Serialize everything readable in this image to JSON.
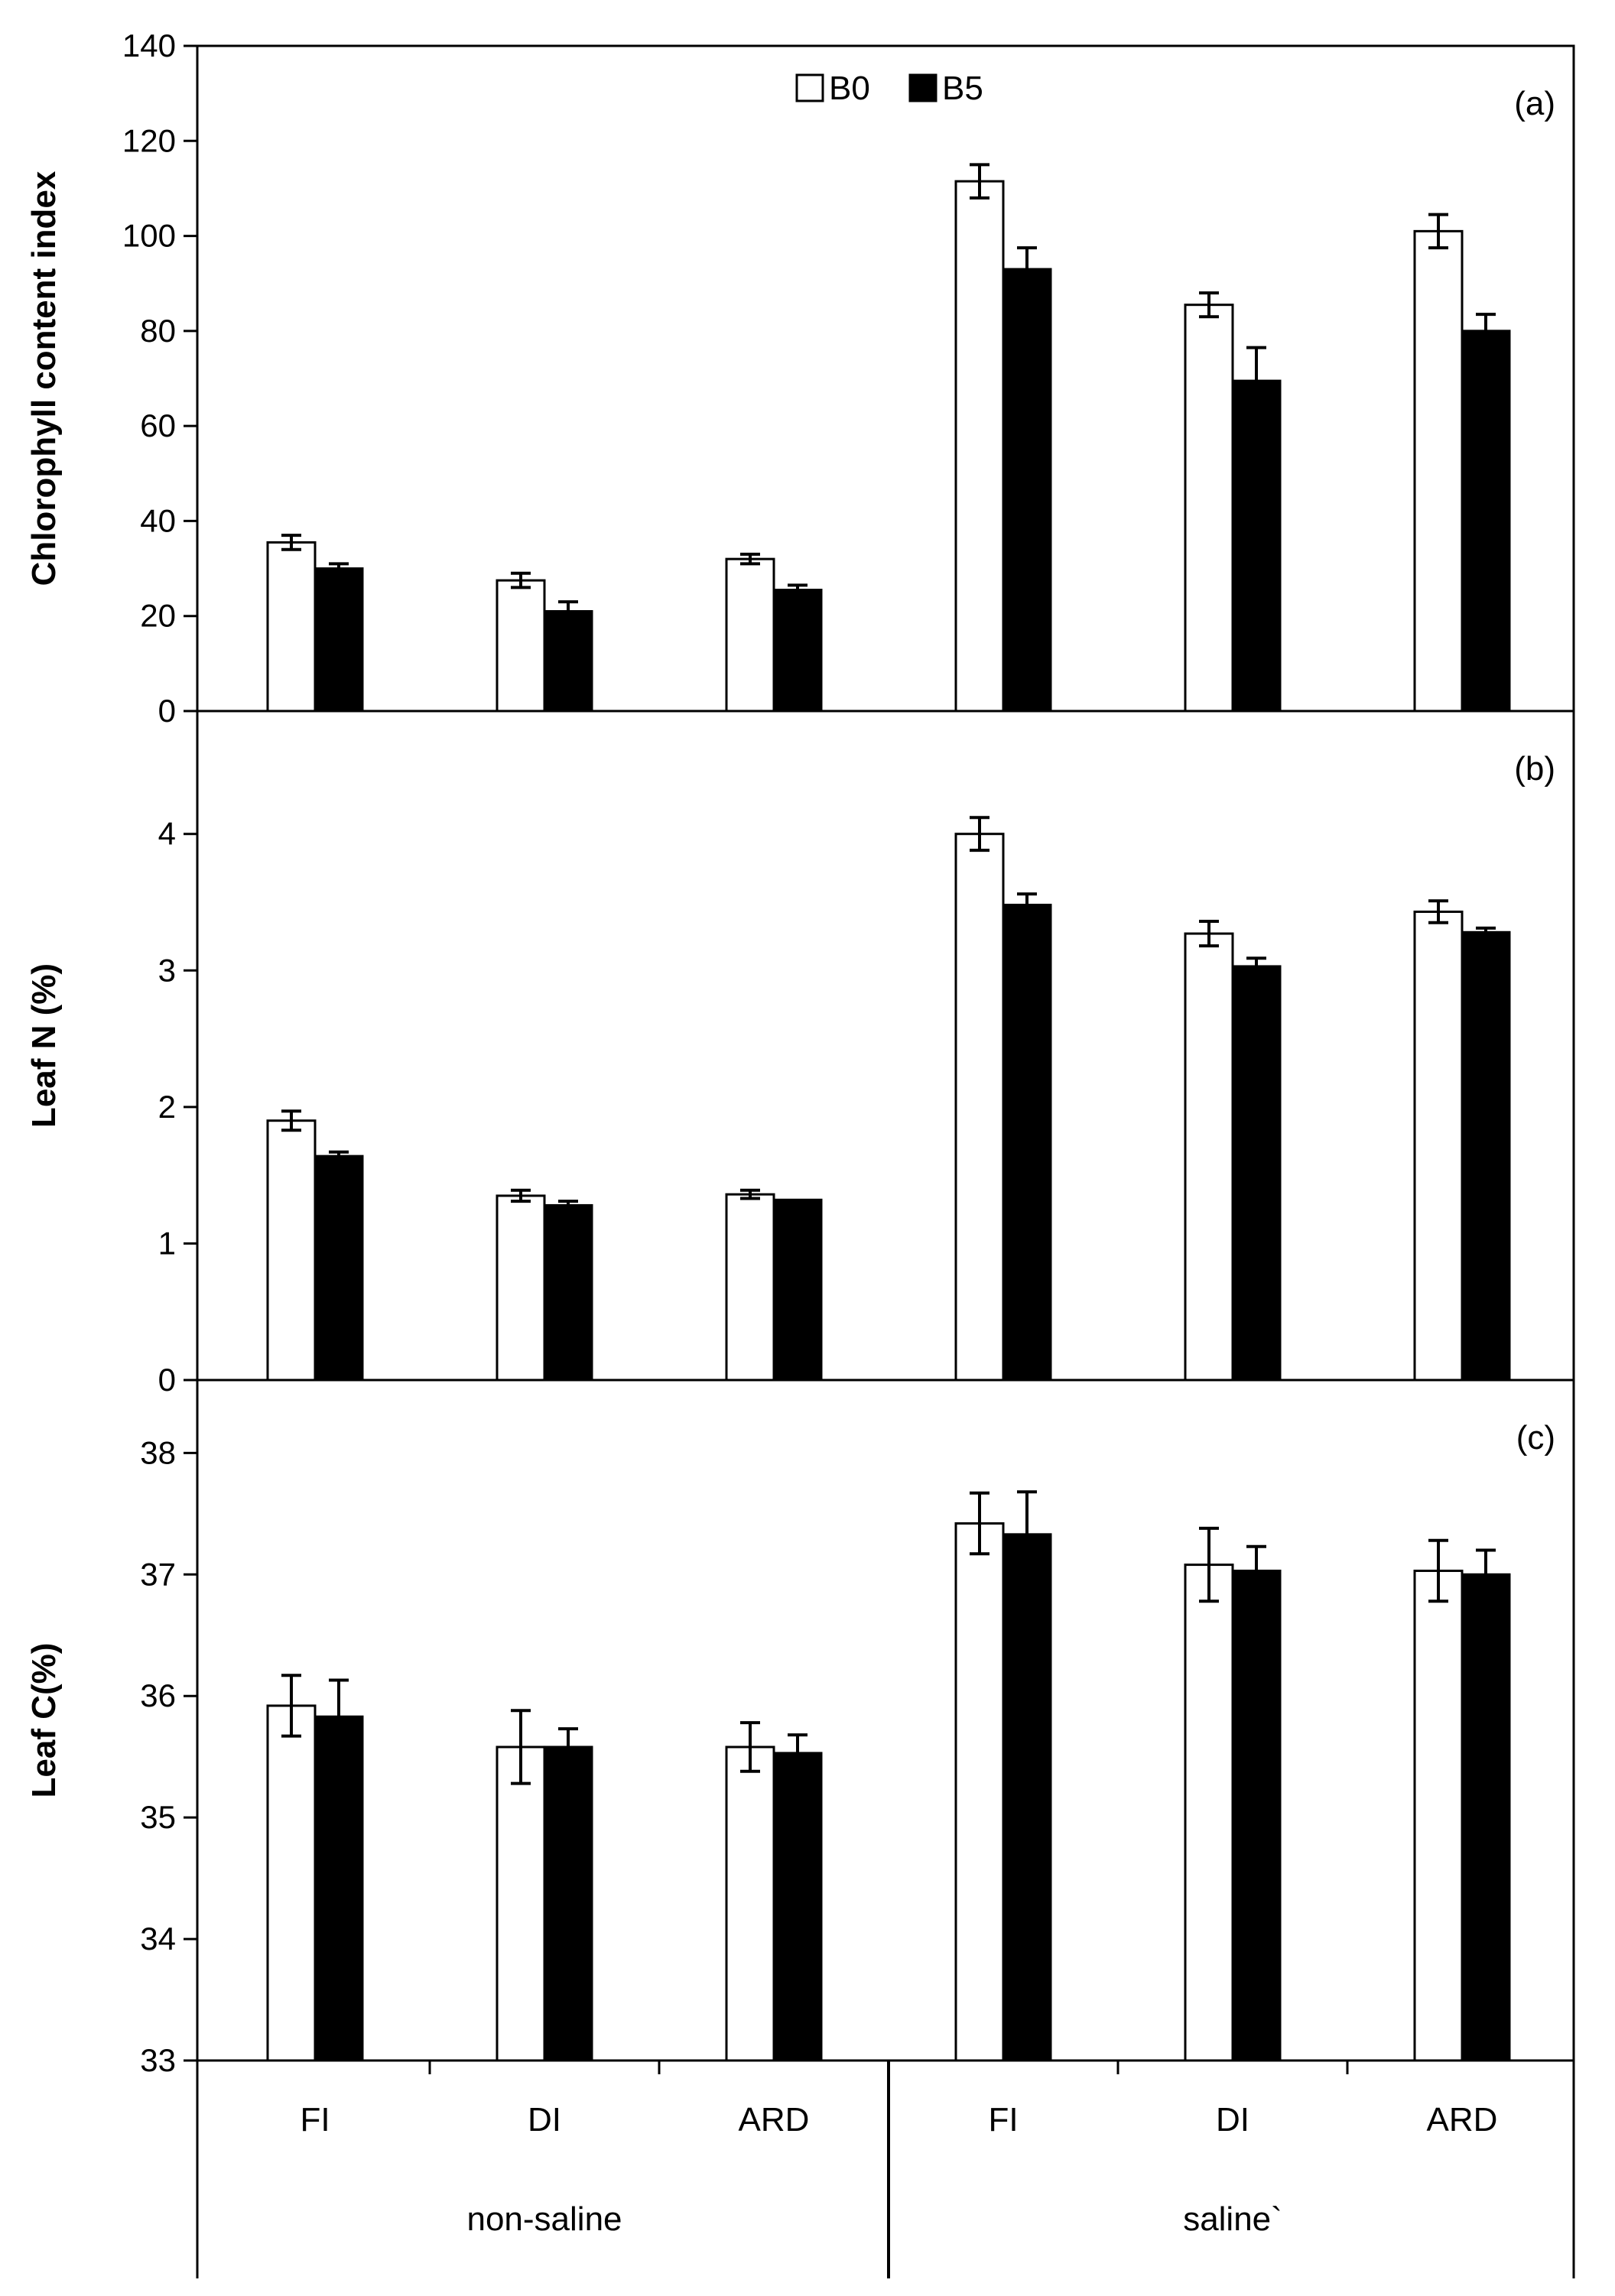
{
  "legend": [
    {
      "name": "B0",
      "color": "#ffffff"
    },
    {
      "name": "B5",
      "color": "#000000"
    }
  ],
  "categories": [
    "FI",
    "DI",
    "ARD",
    "FI",
    "DI",
    "ARD"
  ],
  "groups": [
    {
      "label": "non-saline",
      "categories": [
        0,
        1,
        2
      ]
    },
    {
      "label": "saline`",
      "categories": [
        3,
        4,
        5
      ]
    }
  ],
  "chart_data": [
    {
      "type": "bar",
      "panel_label": "(a)",
      "ylabel": "Chlorophyll content index",
      "ylim": [
        0,
        140
      ],
      "yticks": [
        0,
        20,
        40,
        60,
        80,
        100,
        120,
        140
      ],
      "ytick_labels": [
        "0",
        "20",
        "40",
        "60",
        "80",
        "100",
        "120",
        "140"
      ],
      "legend_position": "top-center",
      "series": [
        {
          "name": "B0",
          "values": [
            35.5,
            27.5,
            32.0,
            111.5,
            85.5,
            101.0
          ],
          "errors": [
            1.5,
            1.5,
            1.0,
            3.5,
            2.5,
            3.5
          ]
        },
        {
          "name": "B5",
          "values": [
            30.0,
            21.0,
            25.5,
            93.0,
            69.5,
            80.0
          ],
          "errors": [
            1.0,
            2.0,
            1.0,
            4.5,
            7.0,
            3.5
          ]
        }
      ]
    },
    {
      "type": "bar",
      "panel_label": "(b)",
      "ylabel": "Leaf N (%)",
      "ylim": [
        0,
        4.9
      ],
      "yticks": [
        0,
        1,
        2,
        3,
        4
      ],
      "ytick_labels": [
        "0",
        "1",
        "2",
        "3",
        "4"
      ],
      "series": [
        {
          "name": "B0",
          "values": [
            1.9,
            1.35,
            1.36,
            4.0,
            3.27,
            3.43
          ],
          "errors": [
            0.07,
            0.04,
            0.03,
            0.12,
            0.09,
            0.08
          ]
        },
        {
          "name": "B5",
          "values": [
            1.64,
            1.28,
            1.32,
            3.48,
            3.03,
            3.28
          ],
          "errors": [
            0.03,
            0.03,
            0.0,
            0.08,
            0.06,
            0.03
          ]
        }
      ]
    },
    {
      "type": "bar",
      "panel_label": "(c)",
      "ylabel": "Leaf C(%)",
      "ylim": [
        33,
        38.6
      ],
      "yticks": [
        33,
        34,
        35,
        36,
        37,
        38
      ],
      "ytick_labels": [
        "33",
        "34",
        "35",
        "36",
        "37",
        "38"
      ],
      "series": [
        {
          "name": "B0",
          "values": [
            35.92,
            35.58,
            35.58,
            37.42,
            37.08,
            37.03
          ],
          "errors": [
            0.25,
            0.3,
            0.2,
            0.25,
            0.3,
            0.25
          ]
        },
        {
          "name": "B5",
          "values": [
            35.83,
            35.58,
            35.53,
            37.33,
            37.03,
            37.0
          ],
          "errors": [
            0.3,
            0.15,
            0.15,
            0.35,
            0.2,
            0.2
          ]
        }
      ]
    }
  ]
}
